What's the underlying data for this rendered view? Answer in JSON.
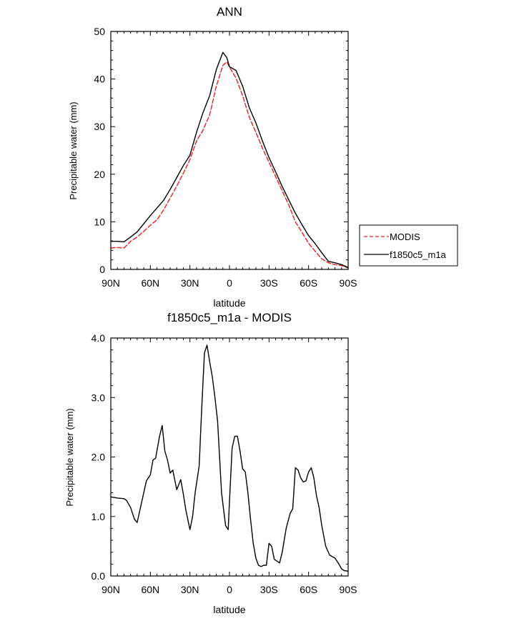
{
  "chart_data": [
    {
      "type": "line",
      "title": "ANN",
      "xlabel": "latitude",
      "ylabel": "Precipitable water (mm)",
      "xlim": [
        90,
        -90
      ],
      "ylim": [
        0,
        50
      ],
      "xticks": [
        {
          "value": 90,
          "label": "90N"
        },
        {
          "value": 60,
          "label": "60N"
        },
        {
          "value": 30,
          "label": "30N"
        },
        {
          "value": 0,
          "label": "0"
        },
        {
          "value": -30,
          "label": "30S"
        },
        {
          "value": -60,
          "label": "60S"
        },
        {
          "value": -90,
          "label": "90S"
        }
      ],
      "yticks": [
        {
          "value": 0,
          "label": "0"
        },
        {
          "value": 10,
          "label": "10"
        },
        {
          "value": 20,
          "label": "20"
        },
        {
          "value": 30,
          "label": "30"
        },
        {
          "value": 40,
          "label": "40"
        },
        {
          "value": 50,
          "label": "50"
        }
      ],
      "legend_position": "right",
      "series": [
        {
          "name": "MODIS",
          "color": "#e8201f",
          "dash": true,
          "x": [
            90,
            85,
            80,
            75,
            70,
            65,
            60,
            55,
            50,
            45,
            40,
            35,
            30,
            25,
            20,
            15,
            10,
            5,
            2,
            0,
            -5,
            -10,
            -15,
            -20,
            -25,
            -30,
            -35,
            -40,
            -45,
            -50,
            -55,
            -60,
            -65,
            -70,
            -75,
            -80,
            -85,
            -90
          ],
          "y": [
            4.5,
            4.6,
            4.5,
            5.9,
            6.8,
            8.0,
            9.3,
            10.4,
            12.5,
            15.0,
            17.5,
            20.2,
            23.1,
            27.0,
            29.3,
            32.5,
            38.5,
            42.9,
            43.6,
            42.5,
            40.2,
            36.5,
            32.0,
            28.8,
            25.5,
            22.5,
            19.5,
            16.5,
            13.5,
            10.0,
            7.8,
            5.5,
            3.8,
            2.2,
            1.4,
            1.0,
            0.8,
            0.3
          ]
        },
        {
          "name": "f1850c5_m1a",
          "color": "#000000",
          "dash": false,
          "x": [
            90,
            85,
            80,
            75,
            70,
            65,
            60,
            55,
            50,
            45,
            40,
            35,
            30,
            25,
            20,
            15,
            10,
            5,
            2,
            0,
            -5,
            -10,
            -15,
            -20,
            -25,
            -30,
            -35,
            -40,
            -45,
            -50,
            -55,
            -60,
            -65,
            -70,
            -75,
            -80,
            -85,
            -90
          ],
          "y": [
            5.9,
            5.9,
            5.8,
            6.8,
            7.9,
            9.6,
            11.3,
            12.9,
            14.5,
            16.8,
            19.3,
            21.8,
            24.0,
            28.8,
            33.0,
            36.5,
            42.0,
            45.6,
            44.5,
            42.6,
            41.8,
            38.5,
            34.0,
            30.8,
            27.0,
            23.5,
            20.5,
            17.4,
            14.6,
            11.8,
            9.4,
            7.1,
            5.4,
            3.5,
            1.7,
            1.4,
            1.0,
            0.4
          ]
        }
      ]
    },
    {
      "type": "line",
      "title": "f1850c5_m1a - MODIS",
      "xlabel": "latitude",
      "ylabel": "Precipitable water (mm)",
      "xlim": [
        90,
        -90
      ],
      "ylim": [
        0,
        4
      ],
      "xticks": [
        {
          "value": 90,
          "label": "90N"
        },
        {
          "value": 60,
          "label": "60N"
        },
        {
          "value": 30,
          "label": "30N"
        },
        {
          "value": 0,
          "label": "0"
        },
        {
          "value": -30,
          "label": "30S"
        },
        {
          "value": -60,
          "label": "60S"
        },
        {
          "value": -90,
          "label": "90S"
        }
      ],
      "yticks": [
        {
          "value": 0,
          "label": "0.0"
        },
        {
          "value": 1,
          "label": "1.0"
        },
        {
          "value": 2,
          "label": "2.0"
        },
        {
          "value": 3,
          "label": "3.0"
        },
        {
          "value": 4,
          "label": "4.0"
        }
      ],
      "series": [
        {
          "color": "#000000",
          "dash": false,
          "x": [
            90,
            85,
            80,
            78,
            75,
            72,
            70,
            67,
            63,
            60,
            58,
            56,
            53,
            51,
            49,
            47,
            45,
            43,
            40,
            37,
            35,
            33,
            30,
            28,
            26,
            23,
            21,
            19,
            17,
            15,
            13,
            11,
            9,
            6,
            3,
            1,
            0,
            -2,
            -4,
            -6,
            -8,
            -10,
            -12,
            -14,
            -16,
            -18,
            -20,
            -22,
            -24,
            -26,
            -28,
            -30,
            -32,
            -34,
            -36,
            -38,
            -40,
            -43,
            -46,
            -48,
            -50,
            -52,
            -54,
            -56,
            -58,
            -60,
            -62,
            -64,
            -66,
            -68,
            -70,
            -73,
            -76,
            -80,
            -83,
            -85,
            -87,
            -90
          ],
          "y": [
            1.33,
            1.31,
            1.3,
            1.27,
            1.15,
            0.95,
            0.9,
            1.2,
            1.6,
            1.7,
            1.95,
            1.98,
            2.35,
            2.53,
            2.1,
            1.95,
            1.73,
            1.78,
            1.45,
            1.62,
            1.38,
            1.1,
            0.78,
            1.0,
            1.4,
            1.85,
            2.85,
            3.75,
            3.88,
            3.6,
            3.35,
            3.0,
            2.6,
            1.4,
            0.85,
            0.78,
            1.25,
            2.15,
            2.35,
            2.35,
            2.1,
            1.8,
            1.75,
            1.4,
            0.95,
            0.55,
            0.3,
            0.18,
            0.16,
            0.18,
            0.18,
            0.55,
            0.5,
            0.28,
            0.25,
            0.22,
            0.4,
            0.8,
            1.05,
            1.13,
            1.82,
            1.78,
            1.65,
            1.58,
            1.6,
            1.75,
            1.82,
            1.65,
            1.35,
            1.15,
            0.85,
            0.5,
            0.35,
            0.3,
            0.2,
            0.12,
            0.09,
            0.08
          ]
        }
      ]
    }
  ]
}
